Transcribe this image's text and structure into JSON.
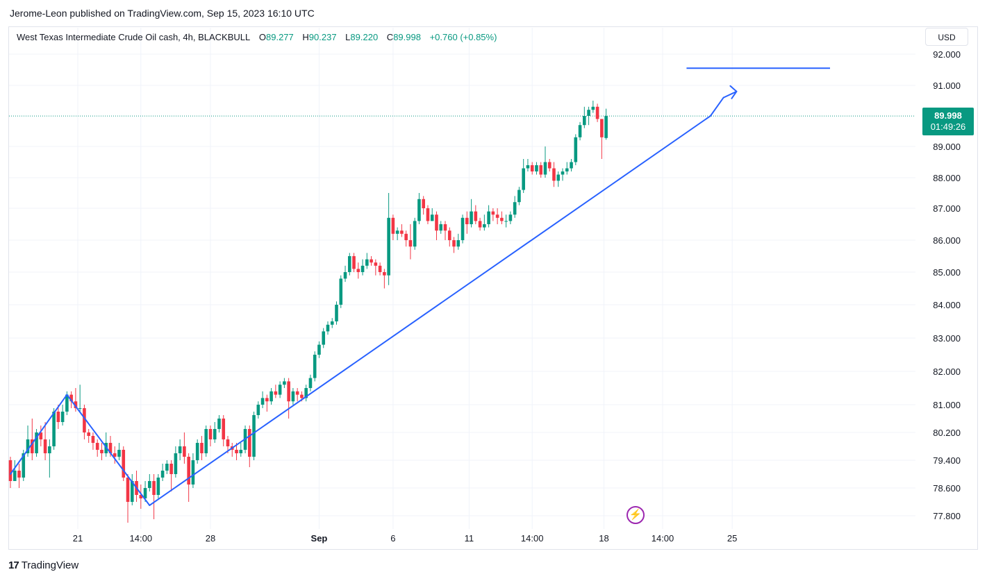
{
  "header": {
    "publisher": "Jerome-Leon published on TradingView.com, Sep 15, 2023 16:10 UTC"
  },
  "legend": {
    "symbol": "West Texas Intermediate Crude Oil cash, 4h, BLACKBULL",
    "o_label": "O",
    "o_value": "89.277",
    "h_label": "H",
    "h_value": "90.237",
    "l_label": "L",
    "l_value": "89.220",
    "c_label": "C",
    "c_value": "89.998",
    "change": "+0.760 (+0.85%)"
  },
  "currency_button": "USD",
  "last_price": {
    "price": "89.998",
    "countdown": "01:49:26"
  },
  "footer": {
    "logo": "17",
    "brand": "TradingView"
  },
  "colors": {
    "up": "#089981",
    "down": "#f23645",
    "drawing": "#2962ff",
    "grid": "#f0f3fa"
  },
  "icons": {
    "bolt": "lightning-icon"
  },
  "chart_data": {
    "type": "candlestick",
    "title": "West Texas Intermediate Crude Oil cash, 4h, BLACKBULL",
    "y_ticks": [
      "92.000",
      "91.000",
      "89.000",
      "88.000",
      "87.000",
      "86.000",
      "85.000",
      "84.000",
      "83.000",
      "82.000",
      "81.000",
      "80.200",
      "79.400",
      "78.600",
      "77.800"
    ],
    "y_tick_values": [
      92.0,
      91.0,
      89.0,
      88.0,
      87.0,
      86.0,
      85.0,
      84.0,
      83.0,
      82.0,
      81.0,
      80.2,
      79.4,
      78.6,
      77.8
    ],
    "x_ticks": [
      "21",
      "14:00",
      "28",
      "Sep",
      "6",
      "11",
      "14:00",
      "18",
      "14:00",
      "25"
    ],
    "x_tick_bars": [
      15.5,
      30,
      46,
      71,
      88,
      105.5,
      120,
      136.5,
      150,
      166
    ],
    "last_close": 89.998,
    "candles": [
      [
        79.4,
        78.8,
        79.5,
        78.6
      ],
      [
        78.8,
        79.1,
        79.4,
        78.8
      ],
      [
        79.1,
        78.9,
        79.3,
        78.6
      ],
      [
        78.9,
        79.6,
        79.7,
        78.8
      ],
      [
        79.6,
        80.0,
        80.4,
        79.5
      ],
      [
        80.0,
        79.6,
        80.6,
        79.4
      ],
      [
        79.6,
        80.2,
        80.3,
        79.5
      ],
      [
        80.2,
        80.0,
        80.4,
        79.8
      ],
      [
        80.0,
        79.6,
        80.5,
        79.4
      ],
      [
        79.6,
        79.8,
        80.0,
        78.9
      ],
      [
        79.8,
        80.8,
        80.9,
        79.7
      ],
      [
        80.8,
        80.5,
        81.0,
        80.3
      ],
      [
        80.5,
        80.8,
        81.0,
        80.4
      ],
      [
        80.8,
        81.3,
        81.4,
        80.7
      ],
      [
        81.3,
        81.1,
        81.4,
        80.9
      ],
      [
        81.1,
        80.9,
        81.5,
        80.8
      ],
      [
        80.9,
        80.9,
        81.6,
        80.8
      ],
      [
        80.9,
        80.2,
        81.0,
        80.0
      ],
      [
        80.2,
        80.1,
        80.3,
        79.9
      ],
      [
        80.1,
        79.9,
        80.2,
        79.7
      ],
      [
        79.9,
        79.7,
        80.0,
        79.5
      ],
      [
        79.7,
        79.6,
        79.9,
        79.4
      ],
      [
        79.6,
        79.9,
        80.2,
        79.5
      ],
      [
        79.9,
        79.6,
        80.1,
        79.5
      ],
      [
        79.6,
        79.5,
        79.8,
        79.3
      ],
      [
        79.5,
        79.7,
        79.9,
        79.4
      ],
      [
        79.7,
        78.9,
        79.8,
        78.8
      ],
      [
        78.9,
        78.2,
        79.0,
        77.6
      ],
      [
        78.2,
        78.8,
        79.0,
        78.1
      ],
      [
        78.8,
        78.4,
        79.1,
        78.2
      ],
      [
        78.4,
        78.3,
        78.7,
        78.0
      ],
      [
        78.3,
        78.6,
        78.8,
        78.2
      ],
      [
        78.6,
        78.8,
        79.0,
        78.5
      ],
      [
        78.8,
        78.4,
        79.0,
        77.7
      ],
      [
        78.4,
        78.9,
        79.0,
        78.3
      ],
      [
        78.9,
        79.1,
        79.3,
        78.8
      ],
      [
        79.1,
        79.3,
        79.4,
        79.0
      ],
      [
        79.3,
        79.0,
        79.4,
        78.5
      ],
      [
        79.0,
        79.6,
        79.8,
        78.9
      ],
      [
        79.6,
        79.8,
        80.0,
        79.4
      ],
      [
        79.8,
        79.5,
        80.2,
        79.3
      ],
      [
        79.5,
        78.7,
        79.6,
        78.2
      ],
      [
        78.7,
        79.4,
        79.6,
        78.6
      ],
      [
        79.4,
        79.9,
        80.0,
        79.3
      ],
      [
        79.9,
        79.6,
        80.1,
        79.4
      ],
      [
        79.6,
        80.3,
        80.4,
        79.5
      ],
      [
        80.3,
        80.0,
        80.4,
        79.8
      ],
      [
        80.0,
        80.3,
        80.5,
        79.9
      ],
      [
        80.3,
        80.6,
        80.7,
        80.2
      ],
      [
        80.6,
        80.0,
        80.7,
        79.8
      ],
      [
        80.0,
        79.8,
        80.1,
        79.6
      ],
      [
        79.8,
        79.7,
        79.9,
        79.5
      ],
      [
        79.7,
        79.6,
        79.9,
        79.4
      ],
      [
        79.6,
        79.7,
        79.9,
        79.5
      ],
      [
        79.7,
        80.3,
        80.4,
        79.6
      ],
      [
        80.3,
        79.5,
        80.4,
        79.2
      ],
      [
        79.5,
        80.7,
        80.8,
        79.4
      ],
      [
        80.7,
        81.0,
        81.1,
        80.6
      ],
      [
        81.0,
        81.2,
        81.4,
        80.9
      ],
      [
        81.2,
        81.1,
        81.3,
        80.8
      ],
      [
        81.1,
        81.4,
        81.5,
        81.0
      ],
      [
        81.4,
        81.3,
        81.6,
        81.2
      ],
      [
        81.3,
        81.6,
        81.7,
        81.2
      ],
      [
        81.6,
        81.7,
        81.8,
        81.5
      ],
      [
        81.7,
        81.1,
        81.8,
        80.6
      ],
      [
        81.1,
        81.4,
        81.5,
        81.0
      ],
      [
        81.4,
        81.3,
        81.5,
        81.1
      ],
      [
        81.3,
        81.2,
        81.4,
        81.1
      ],
      [
        81.2,
        81.5,
        81.6,
        81.1
      ],
      [
        81.5,
        81.8,
        81.9,
        81.4
      ],
      [
        81.8,
        82.5,
        82.6,
        81.7
      ],
      [
        82.5,
        82.8,
        82.9,
        82.4
      ],
      [
        82.8,
        83.2,
        83.3,
        82.7
      ],
      [
        83.2,
        83.4,
        83.5,
        83.1
      ],
      [
        83.4,
        83.5,
        83.6,
        83.3
      ],
      [
        83.5,
        84.0,
        84.1,
        83.4
      ],
      [
        84.0,
        84.8,
        84.9,
        83.9
      ],
      [
        84.8,
        85.0,
        85.2,
        84.7
      ],
      [
        85.0,
        85.5,
        85.6,
        84.9
      ],
      [
        85.5,
        85.1,
        85.6,
        85.0
      ],
      [
        85.1,
        85.0,
        85.3,
        84.8
      ],
      [
        85.0,
        85.2,
        85.4,
        84.9
      ],
      [
        85.2,
        85.4,
        85.6,
        85.1
      ],
      [
        85.4,
        85.3,
        85.5,
        85.2
      ],
      [
        85.3,
        85.2,
        85.4,
        84.9
      ],
      [
        85.2,
        85.0,
        85.3,
        84.9
      ],
      [
        85.0,
        84.9,
        85.1,
        84.5
      ],
      [
        84.9,
        86.7,
        87.5,
        84.6
      ],
      [
        86.7,
        86.2,
        86.8,
        86.0
      ],
      [
        86.2,
        86.3,
        86.4,
        86.0
      ],
      [
        86.3,
        86.2,
        86.5,
        86.1
      ],
      [
        86.2,
        86.0,
        86.3,
        85.8
      ],
      [
        86.0,
        85.8,
        86.5,
        85.4
      ],
      [
        85.8,
        86.6,
        86.7,
        85.7
      ],
      [
        86.6,
        87.3,
        87.5,
        86.5
      ],
      [
        87.3,
        87.0,
        87.4,
        86.8
      ],
      [
        87.0,
        86.6,
        87.1,
        86.5
      ],
      [
        86.6,
        86.8,
        87.0,
        86.6
      ],
      [
        86.8,
        86.3,
        86.9,
        86.0
      ],
      [
        86.3,
        86.5,
        86.6,
        86.2
      ],
      [
        86.5,
        86.3,
        86.6,
        86.0
      ],
      [
        86.3,
        86.0,
        86.4,
        85.8
      ],
      [
        86.0,
        85.8,
        86.1,
        85.6
      ],
      [
        85.8,
        86.0,
        86.2,
        85.7
      ],
      [
        86.0,
        86.7,
        86.8,
        85.9
      ],
      [
        86.7,
        86.5,
        86.9,
        86.2
      ],
      [
        86.5,
        86.9,
        87.3,
        86.4
      ],
      [
        86.9,
        86.6,
        87.1,
        86.5
      ],
      [
        86.6,
        86.4,
        86.7,
        86.3
      ],
      [
        86.4,
        86.5,
        86.8,
        86.3
      ],
      [
        86.5,
        86.9,
        87.1,
        86.4
      ],
      [
        86.9,
        86.8,
        87.0,
        86.6
      ],
      [
        86.8,
        86.7,
        87.0,
        86.5
      ],
      [
        86.7,
        86.6,
        86.9,
        86.5
      ],
      [
        86.6,
        86.6,
        86.8,
        86.4
      ],
      [
        86.6,
        86.8,
        86.9,
        86.5
      ],
      [
        86.8,
        87.2,
        87.4,
        86.7
      ],
      [
        87.2,
        87.6,
        87.7,
        87.1
      ],
      [
        87.6,
        88.3,
        88.6,
        87.5
      ],
      [
        88.3,
        88.4,
        88.6,
        88.2
      ],
      [
        88.4,
        88.2,
        88.5,
        88.1
      ],
      [
        88.2,
        88.4,
        88.5,
        88.1
      ],
      [
        88.4,
        88.1,
        88.5,
        88.0
      ],
      [
        88.1,
        88.5,
        89.0,
        88.0
      ],
      [
        88.5,
        88.3,
        88.6,
        88.2
      ],
      [
        88.3,
        87.9,
        88.5,
        87.7
      ],
      [
        87.9,
        88.1,
        88.2,
        87.7
      ],
      [
        88.1,
        88.2,
        88.3,
        87.9
      ],
      [
        88.2,
        88.3,
        88.5,
        88.1
      ],
      [
        88.3,
        88.5,
        88.6,
        88.2
      ],
      [
        88.5,
        89.3,
        89.4,
        88.4
      ],
      [
        89.3,
        89.7,
        89.8,
        89.2
      ],
      [
        89.7,
        90.0,
        90.3,
        89.6
      ],
      [
        90.0,
        90.2,
        90.3,
        89.7
      ],
      [
        90.2,
        90.3,
        90.5,
        90.1
      ],
      [
        90.3,
        89.9,
        90.4,
        89.8
      ],
      [
        89.9,
        89.3,
        89.9,
        88.6
      ],
      [
        89.277,
        89.998,
        90.237,
        89.22
      ]
    ],
    "trend_lines": [
      {
        "from": [
          0,
          79.0
        ],
        "to": [
          13,
          81.3
        ]
      },
      {
        "from": [
          13,
          81.3
        ],
        "to": [
          32,
          78.1
        ]
      },
      {
        "from": [
          32,
          78.1
        ],
        "to": [
          161,
          90.0
        ]
      },
      {
        "from": [
          161,
          90.0
        ],
        "to": [
          164,
          90.6
        ]
      },
      {
        "from": [
          164,
          90.6
        ],
        "to": [
          167,
          90.8
        ]
      }
    ],
    "resistance_line": {
      "from_bar": 155.5,
      "to_bar": 188.5,
      "price": 91.55
    }
  }
}
